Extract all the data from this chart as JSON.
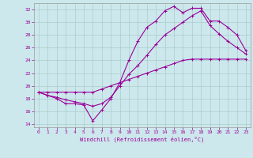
{
  "xlabel": "Windchill (Refroidissement éolien,°C)",
  "background_color": "#cce8ec",
  "grid_color": "#aacccc",
  "line_color": "#990099",
  "xlim": [
    -0.5,
    23.5
  ],
  "ylim": [
    13.5,
    33.0
  ],
  "xticks": [
    0,
    1,
    2,
    3,
    4,
    5,
    6,
    7,
    8,
    9,
    10,
    11,
    12,
    13,
    14,
    15,
    16,
    17,
    18,
    19,
    20,
    21,
    22,
    23
  ],
  "yticks": [
    14,
    16,
    18,
    20,
    22,
    24,
    26,
    28,
    30,
    32
  ],
  "series1": [
    19,
    18.5,
    18,
    17.2,
    17.2,
    17,
    14.5,
    16.2,
    18,
    20.5,
    24,
    27,
    29.2,
    30.2,
    31.8,
    32.5,
    31.5,
    32.2,
    32.2,
    30.2,
    30.2,
    29.2,
    28,
    25.5
  ],
  "series2": [
    19,
    18.5,
    18.2,
    17.8,
    17.5,
    17.2,
    16.8,
    17.2,
    18.2,
    20,
    21.8,
    23.2,
    24.8,
    26.5,
    28,
    29,
    30,
    31,
    31.8,
    29.5,
    28.2,
    27,
    26,
    25
  ],
  "series3": [
    19,
    19,
    19,
    19,
    19,
    19,
    19,
    19.5,
    20,
    20.5,
    21,
    21.5,
    22,
    22.5,
    23,
    23.5,
    24,
    24.2,
    24.2,
    24.2,
    24.2,
    24.2,
    24.2,
    24.2
  ]
}
